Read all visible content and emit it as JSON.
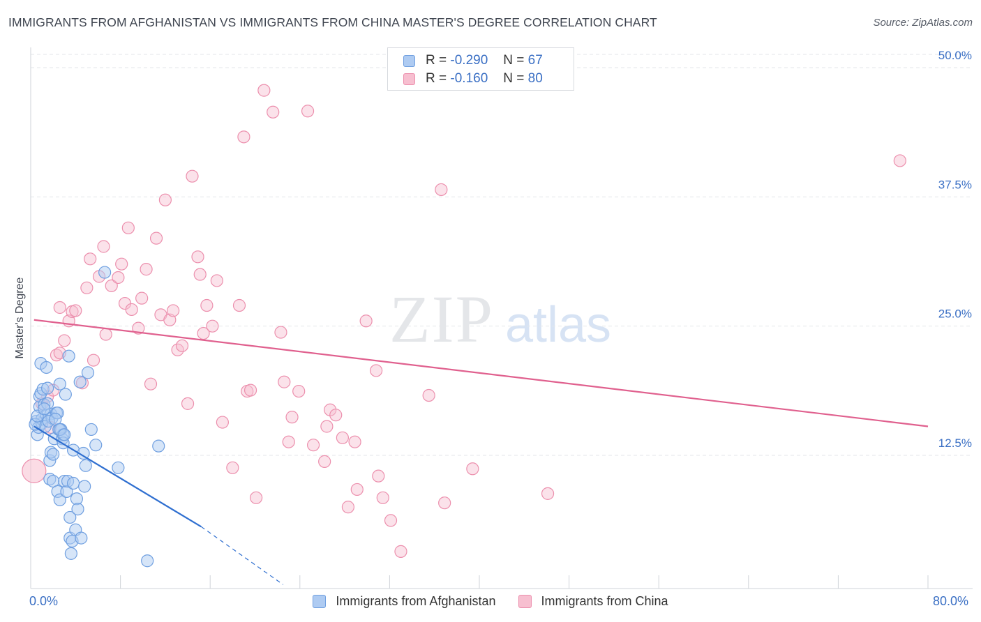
{
  "title": "IMMIGRANTS FROM AFGHANISTAN VS IMMIGRANTS FROM CHINA MASTER'S DEGREE CORRELATION CHART",
  "source": "Source: ZipAtlas.com",
  "watermark": {
    "zip": "ZIP",
    "atlas": "atlas"
  },
  "legend": {
    "r_label": "R =",
    "n_label": "N =",
    "afghanistan": {
      "r": "-0.290",
      "n": "67"
    },
    "china": {
      "r": "-0.160",
      "n": "80"
    }
  },
  "chart_data": {
    "type": "scatter",
    "title": "IMMIGRANTS FROM AFGHANISTAN VS IMMIGRANTS FROM CHINA MASTER'S DEGREE CORRELATION CHART",
    "xlabel": "",
    "ylabel": "Master's Degree",
    "xlim": [
      0,
      80
    ],
    "ylim": [
      0,
      52
    ],
    "x_tick_labels": {
      "min": "0.0%",
      "max": "80.0%"
    },
    "y_ticks": [
      12.5,
      25.0,
      37.5,
      50.0
    ],
    "y_tick_labels": [
      "12.5%",
      "25.0%",
      "37.5%",
      "50.0%"
    ],
    "colors": {
      "afghanistan_fill": "#aecbf2",
      "afghanistan_stroke": "#6f9fe0",
      "afghanistan_line": "#2f6fd0",
      "china_fill": "#f7bfd0",
      "china_stroke": "#ec8fad",
      "china_line": "#e0608e",
      "tick_label": "#3a6fc4",
      "grid": "#e3e6ea"
    },
    "series": [
      {
        "name": "Immigrants from Afghanistan",
        "trend": {
          "x0": 0.3,
          "y0": 15.3,
          "x1": 15.2,
          "y1": 5.6,
          "dash_to_x": 22.5,
          "dash_to_y": 0.0
        },
        "points": [
          [
            0.5,
            15.8
          ],
          [
            0.6,
            14.5
          ],
          [
            0.7,
            15.2
          ],
          [
            0.8,
            17.2
          ],
          [
            0.8,
            18.2
          ],
          [
            0.9,
            18.5
          ],
          [
            0.9,
            21.4
          ],
          [
            1.0,
            15.6
          ],
          [
            1.0,
            16.0
          ],
          [
            1.1,
            18.9
          ],
          [
            1.2,
            17.4
          ],
          [
            1.3,
            15.3
          ],
          [
            1.4,
            16.4
          ],
          [
            1.4,
            21.0
          ],
          [
            1.5,
            19.0
          ],
          [
            1.5,
            17.5
          ],
          [
            1.7,
            12.0
          ],
          [
            1.7,
            10.2
          ],
          [
            1.8,
            16.5
          ],
          [
            1.8,
            12.8
          ],
          [
            1.9,
            16.1
          ],
          [
            2.0,
            10.0
          ],
          [
            2.1,
            14.1
          ],
          [
            2.3,
            16.6
          ],
          [
            2.4,
            16.6
          ],
          [
            2.4,
            9.0
          ],
          [
            2.5,
            15.0
          ],
          [
            2.6,
            19.4
          ],
          [
            2.6,
            8.2
          ],
          [
            2.7,
            15.0
          ],
          [
            2.8,
            14.1
          ],
          [
            2.9,
            14.5
          ],
          [
            2.9,
            13.7
          ],
          [
            3.0,
            10.0
          ],
          [
            3.1,
            18.4
          ],
          [
            3.2,
            9.0
          ],
          [
            3.3,
            10.0
          ],
          [
            3.4,
            22.1
          ],
          [
            3.5,
            6.5
          ],
          [
            3.5,
            4.5
          ],
          [
            3.6,
            3.0
          ],
          [
            3.7,
            4.2
          ],
          [
            3.8,
            9.8
          ],
          [
            3.8,
            13.0
          ],
          [
            4.0,
            5.3
          ],
          [
            4.1,
            8.3
          ],
          [
            4.2,
            7.3
          ],
          [
            4.4,
            19.6
          ],
          [
            4.5,
            4.5
          ],
          [
            4.7,
            12.7
          ],
          [
            4.8,
            9.5
          ],
          [
            4.9,
            11.5
          ],
          [
            5.1,
            20.5
          ],
          [
            5.4,
            15.0
          ],
          [
            5.8,
            13.5
          ],
          [
            6.6,
            30.2
          ],
          [
            7.8,
            11.3
          ],
          [
            10.4,
            2.3
          ],
          [
            11.4,
            13.4
          ],
          [
            0.4,
            15.5
          ],
          [
            0.6,
            16.3
          ],
          [
            1.2,
            17.0
          ],
          [
            1.6,
            15.8
          ],
          [
            2.2,
            16.0
          ],
          [
            2.6,
            15.0
          ],
          [
            3.0,
            14.5
          ],
          [
            2.0,
            12.6
          ]
        ]
      },
      {
        "name": "Immigrants from China",
        "trend": {
          "x0": 0.3,
          "y0": 25.6,
          "x1": 80.0,
          "y1": 15.3
        },
        "points": [
          [
            0.3,
            11.0,
            "big"
          ],
          [
            1.0,
            17.5
          ],
          [
            1.5,
            18.2
          ],
          [
            1.8,
            15.2
          ],
          [
            2.0,
            18.8
          ],
          [
            2.3,
            22.2
          ],
          [
            2.6,
            22.4
          ],
          [
            2.6,
            26.8
          ],
          [
            3.0,
            23.6
          ],
          [
            3.4,
            25.5
          ],
          [
            3.7,
            26.4
          ],
          [
            4.0,
            26.5
          ],
          [
            4.6,
            19.5
          ],
          [
            5.0,
            28.7
          ],
          [
            5.3,
            31.5
          ],
          [
            5.6,
            21.7
          ],
          [
            6.1,
            29.8
          ],
          [
            6.5,
            32.7
          ],
          [
            6.7,
            24.2
          ],
          [
            7.2,
            28.9
          ],
          [
            7.8,
            29.7
          ],
          [
            8.1,
            31.0
          ],
          [
            8.4,
            27.2
          ],
          [
            8.7,
            34.5
          ],
          [
            9.0,
            26.6
          ],
          [
            9.6,
            24.8
          ],
          [
            9.9,
            27.7
          ],
          [
            10.3,
            30.5
          ],
          [
            10.7,
            19.4
          ],
          [
            11.2,
            33.5
          ],
          [
            11.6,
            26.1
          ],
          [
            12.0,
            37.2
          ],
          [
            12.4,
            25.6
          ],
          [
            12.7,
            26.5
          ],
          [
            13.1,
            22.7
          ],
          [
            13.5,
            23.1
          ],
          [
            14.0,
            17.5
          ],
          [
            14.4,
            39.5
          ],
          [
            14.9,
            31.7
          ],
          [
            15.1,
            30.0
          ],
          [
            15.4,
            24.3
          ],
          [
            15.7,
            27.0
          ],
          [
            16.2,
            25.0
          ],
          [
            16.6,
            29.4
          ],
          [
            17.1,
            15.7
          ],
          [
            18.0,
            11.3
          ],
          [
            18.6,
            27.0
          ],
          [
            19.0,
            43.3
          ],
          [
            19.3,
            18.7
          ],
          [
            19.6,
            18.8
          ],
          [
            20.1,
            8.4
          ],
          [
            20.8,
            47.8
          ],
          [
            21.6,
            45.7
          ],
          [
            22.3,
            24.4
          ],
          [
            22.6,
            19.6
          ],
          [
            23.0,
            13.8
          ],
          [
            23.3,
            16.2
          ],
          [
            23.9,
            18.7
          ],
          [
            24.7,
            45.8
          ],
          [
            25.2,
            13.5
          ],
          [
            26.2,
            11.9
          ],
          [
            26.4,
            15.3
          ],
          [
            26.7,
            16.9
          ],
          [
            27.2,
            16.4
          ],
          [
            27.8,
            14.2
          ],
          [
            28.3,
            7.5
          ],
          [
            28.9,
            13.8
          ],
          [
            29.1,
            9.2
          ],
          [
            29.9,
            25.5
          ],
          [
            30.8,
            20.7
          ],
          [
            31.0,
            10.5
          ],
          [
            31.4,
            8.4
          ],
          [
            32.1,
            6.2
          ],
          [
            33.0,
            3.2
          ],
          [
            35.5,
            18.3
          ],
          [
            36.6,
            38.2
          ],
          [
            36.9,
            7.9
          ],
          [
            39.4,
            11.2
          ],
          [
            46.1,
            8.8
          ],
          [
            77.5,
            41.0
          ]
        ]
      }
    ]
  },
  "bottom_legend": {
    "afghanistan": "Immigrants from Afghanistan",
    "china": "Immigrants from China"
  }
}
